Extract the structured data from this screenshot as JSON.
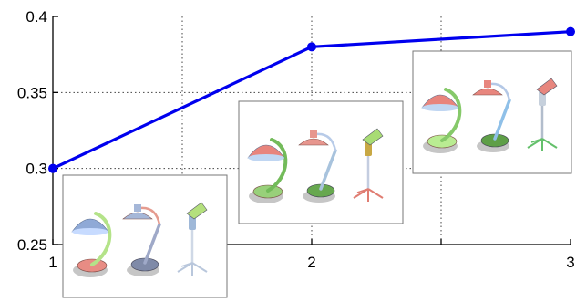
{
  "chart_data": {
    "type": "line",
    "title": "",
    "xlabel": "",
    "ylabel": "",
    "x": [
      1,
      2,
      3
    ],
    "xticks": [
      1,
      1.5,
      2,
      2.5,
      3
    ],
    "xtick_labels": [
      "1",
      "",
      "2",
      "",
      "3"
    ],
    "yticks": [
      0.25,
      0.3,
      0.35,
      0.4
    ],
    "ytick_labels": [
      "0.25",
      "0.3",
      "0.35",
      "0.4"
    ],
    "xlim": [
      1,
      3
    ],
    "ylim": [
      0.25,
      0.4
    ],
    "grid": true,
    "series": [
      {
        "values": [
          0.3,
          0.38,
          0.39
        ],
        "color": "#0000ee"
      }
    ],
    "insets": [
      {
        "anchor_x": 1,
        "content": "three desk lamps (first set)"
      },
      {
        "anchor_x": 2,
        "content": "three desk lamps (second set)"
      },
      {
        "anchor_x": 3,
        "content": "three desk lamps (third set)"
      }
    ]
  }
}
